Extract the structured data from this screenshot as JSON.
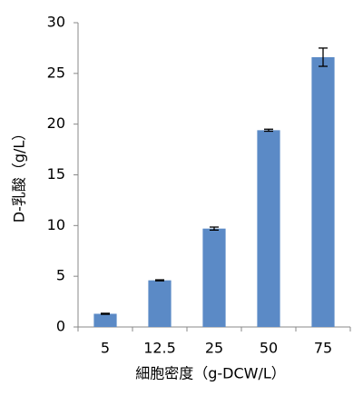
{
  "chart_data": {
    "type": "bar",
    "x_label": "細胞密度（g-DCW/L）",
    "y_label": "D-乳酸（g/L）",
    "categories": [
      "5",
      "12.5",
      "25",
      "50",
      "75"
    ],
    "values": [
      1.3,
      4.6,
      9.7,
      19.4,
      26.6
    ],
    "errors": [
      0.05,
      0.05,
      0.15,
      0.1,
      0.9
    ],
    "color": "#5b8ac6",
    "ylim": [
      0,
      30
    ],
    "yticks": [
      0,
      5,
      10,
      15,
      20,
      25,
      30
    ]
  }
}
